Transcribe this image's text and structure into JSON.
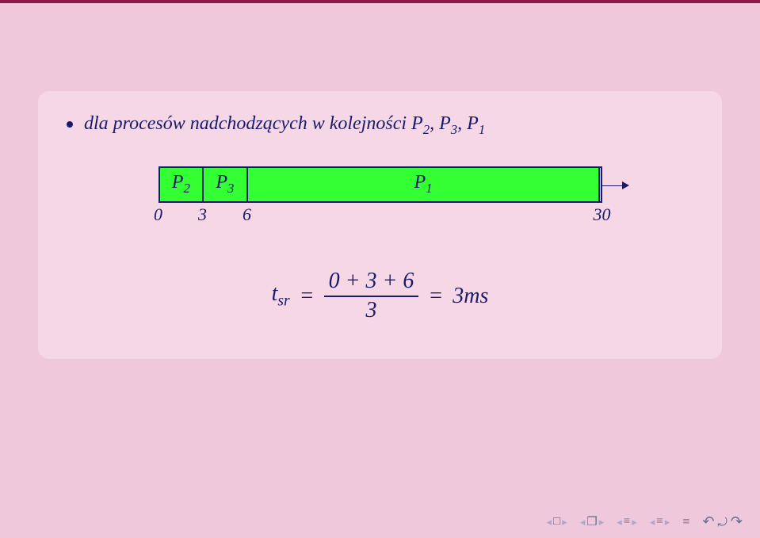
{
  "colors": {
    "page_bg": "#f0c8dc",
    "box_bg": "#f5d7e6",
    "topbar": "#8b1a4a",
    "text": "#1a1a6a",
    "seg_fill": "#33ff33",
    "seg_border": "#1a1a6a"
  },
  "bullet": {
    "prefix": "dla procesów nadchodzących w kolejności ",
    "procs": [
      "P",
      "2",
      ", ",
      "P",
      "3",
      ", ",
      "P",
      "1"
    ]
  },
  "gantt": {
    "total": 30,
    "segments": [
      {
        "label_base": "P",
        "label_sub": "2",
        "start": 0,
        "end": 3
      },
      {
        "label_base": "P",
        "label_sub": "3",
        "start": 3,
        "end": 6
      },
      {
        "label_base": "P",
        "label_sub": "1",
        "start": 6,
        "end": 30
      }
    ],
    "ticks": [
      {
        "pos": 0,
        "label": "0"
      },
      {
        "pos": 3,
        "label": "3"
      },
      {
        "pos": 6,
        "label": "6"
      },
      {
        "pos": 30,
        "label": "30"
      }
    ],
    "fill_color": "#33ff33",
    "text_fontsize": 24
  },
  "formula": {
    "lhs_var": "t",
    "lhs_sub": "sr",
    "eq1": "=",
    "numerator": "0 + 3 + 6",
    "denominator": "3",
    "eq2": "=",
    "rhs_val": "3",
    "rhs_unit": "ms",
    "fontsize": 28
  },
  "nav": {
    "icons": {
      "frame": "□",
      "overlap": "❐",
      "lines": "≡",
      "lines2": "≡",
      "single_lines": "≡",
      "undo": "↶",
      "search": "⤾",
      "redo": "↷"
    }
  }
}
